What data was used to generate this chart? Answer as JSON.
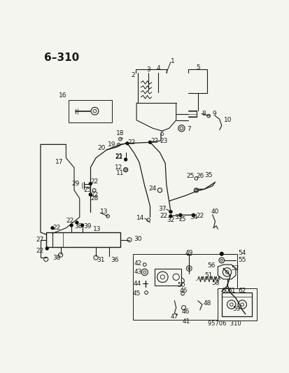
{
  "title": "6–310",
  "footer": "95706 310",
  "bg_color": "#f5f5f0",
  "line_color": "#1a1a1a",
  "title_fontsize": 11,
  "label_fontsize": 6.5,
  "fig_width": 4.14,
  "fig_height": 5.33,
  "dpi": 100
}
